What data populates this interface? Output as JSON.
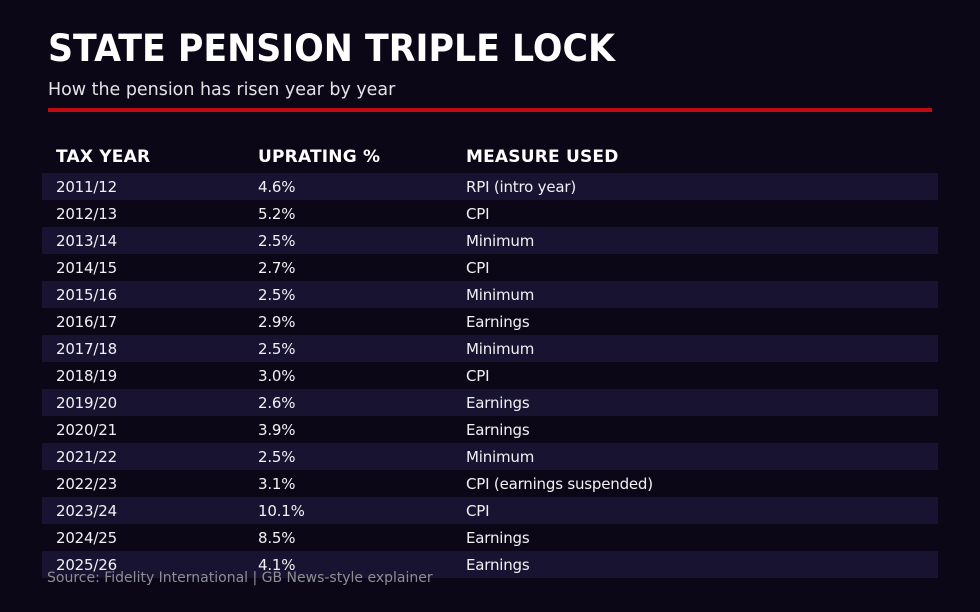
{
  "colors": {
    "background": "#0c0716",
    "row_stripe": "#171330",
    "divider_red": "#c00b12",
    "title_text": "#ffffff",
    "body_text": "#f1f1f4",
    "source_text": "#8e8e97"
  },
  "chart_data": {
    "type": "table",
    "title": "STATE PENSION TRIPLE LOCK",
    "subtitle": "How the pension has risen year by year",
    "columns": [
      "TAX YEAR",
      "UPRATING %",
      "MEASURE USED"
    ],
    "rows": [
      [
        "2011/12",
        "4.6%",
        "RPI (intro year)"
      ],
      [
        "2012/13",
        "5.2%",
        "CPI"
      ],
      [
        "2013/14",
        "2.5%",
        "Minimum"
      ],
      [
        "2014/15",
        "2.7%",
        "CPI"
      ],
      [
        "2015/16",
        "2.5%",
        "Minimum"
      ],
      [
        "2016/17",
        "2.9%",
        "Earnings"
      ],
      [
        "2017/18",
        "2.5%",
        "Minimum"
      ],
      [
        "2018/19",
        "3.0%",
        "CPI"
      ],
      [
        "2019/20",
        "2.6%",
        "Earnings"
      ],
      [
        "2020/21",
        "3.9%",
        "Earnings"
      ],
      [
        "2021/22",
        "2.5%",
        "Minimum"
      ],
      [
        "2022/23",
        "3.1%",
        "CPI (earnings suspended)"
      ],
      [
        "2023/24",
        "10.1%",
        "CPI"
      ],
      [
        "2024/25",
        "8.5%",
        "Earnings"
      ],
      [
        "2025/26",
        "4.1%",
        "Earnings"
      ]
    ],
    "uprating_values_pct": [
      4.6,
      5.2,
      2.5,
      2.7,
      2.5,
      2.9,
      2.5,
      3.0,
      2.6,
      3.9,
      2.5,
      3.1,
      10.1,
      8.5,
      4.1
    ],
    "layout_hints": {
      "row_striping": "odd rows shaded",
      "header_style": "bold, no background",
      "alignment": "left"
    }
  },
  "footer": {
    "source": "Source: Fidelity International | GB News-style explainer"
  }
}
